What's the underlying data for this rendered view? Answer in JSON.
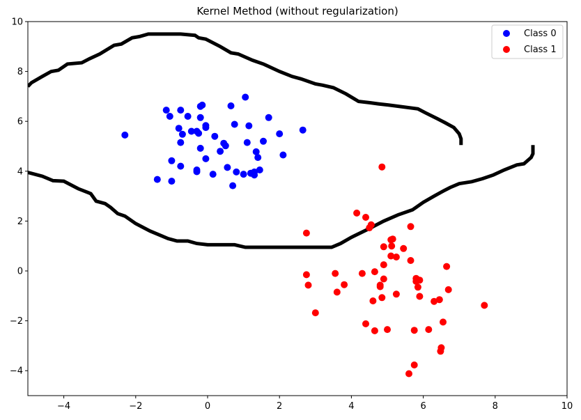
{
  "chart_data": {
    "type": "scatter",
    "title": "Kernel Method (without regularization)",
    "xlabel": "",
    "ylabel": "",
    "xlim": [
      -5,
      10
    ],
    "ylim": [
      -5,
      10
    ],
    "xticks": [
      -4,
      -2,
      0,
      2,
      4,
      6,
      8,
      10
    ],
    "yticks": [
      -4,
      -2,
      0,
      2,
      4,
      6,
      8,
      10
    ],
    "grid": false,
    "legend": "top-right",
    "series": [
      {
        "name": "Class 0",
        "color": "#0000ff",
        "points": [
          [
            -2.3,
            5.45
          ],
          [
            -1.15,
            6.45
          ],
          [
            -1.05,
            6.2
          ],
          [
            -0.75,
            6.45
          ],
          [
            -0.55,
            6.2
          ],
          [
            -0.2,
            6.6
          ],
          [
            -0.15,
            6.65
          ],
          [
            0.65,
            6.62
          ],
          [
            1.05,
            6.97
          ],
          [
            -0.8,
            5.72
          ],
          [
            -0.7,
            5.48
          ],
          [
            -0.45,
            5.6
          ],
          [
            -0.3,
            5.6
          ],
          [
            -0.25,
            5.52
          ],
          [
            -0.05,
            5.83
          ],
          [
            -0.05,
            5.75
          ],
          [
            0.75,
            5.88
          ],
          [
            1.15,
            5.82
          ],
          [
            1.7,
            6.15
          ],
          [
            2.0,
            5.5
          ],
          [
            2.65,
            5.65
          ],
          [
            -0.2,
            6.15
          ],
          [
            -0.75,
            5.15
          ],
          [
            -0.2,
            4.92
          ],
          [
            0.2,
            5.4
          ],
          [
            0.45,
            5.12
          ],
          [
            0.5,
            5.02
          ],
          [
            1.1,
            5.15
          ],
          [
            1.55,
            5.2
          ],
          [
            0.35,
            4.8
          ],
          [
            1.35,
            4.78
          ],
          [
            1.4,
            4.55
          ],
          [
            2.1,
            4.65
          ],
          [
            -0.05,
            4.5
          ],
          [
            -1.0,
            4.42
          ],
          [
            -0.75,
            4.2
          ],
          [
            -0.3,
            4.05
          ],
          [
            -0.3,
            3.98
          ],
          [
            0.55,
            4.15
          ],
          [
            0.8,
            3.97
          ],
          [
            1.0,
            3.88
          ],
          [
            1.2,
            3.92
          ],
          [
            1.3,
            3.97
          ],
          [
            1.45,
            4.05
          ],
          [
            0.15,
            3.88
          ],
          [
            1.3,
            3.85
          ],
          [
            -1.4,
            3.67
          ],
          [
            -1.0,
            3.6
          ],
          [
            0.7,
            3.42
          ]
        ]
      },
      {
        "name": "Class 1",
        "color": "#ff0000",
        "points": [
          [
            4.85,
            4.17
          ],
          [
            2.75,
            1.52
          ],
          [
            4.15,
            2.32
          ],
          [
            4.4,
            2.15
          ],
          [
            4.55,
            1.85
          ],
          [
            4.5,
            1.73
          ],
          [
            5.65,
            1.78
          ],
          [
            5.15,
            1.28
          ],
          [
            5.1,
            1.25
          ],
          [
            4.9,
            0.97
          ],
          [
            5.12,
            1.0
          ],
          [
            5.45,
            0.9
          ],
          [
            5.1,
            0.6
          ],
          [
            5.25,
            0.56
          ],
          [
            5.65,
            0.42
          ],
          [
            4.9,
            0.25
          ],
          [
            6.65,
            0.18
          ],
          [
            2.75,
            -0.15
          ],
          [
            3.55,
            -0.1
          ],
          [
            4.3,
            -0.1
          ],
          [
            4.65,
            -0.03
          ],
          [
            2.8,
            -0.57
          ],
          [
            3.8,
            -0.55
          ],
          [
            3.6,
            -0.85
          ],
          [
            4.8,
            -0.57
          ],
          [
            4.8,
            -0.63
          ],
          [
            4.9,
            -0.32
          ],
          [
            5.8,
            -0.3
          ],
          [
            5.9,
            -0.37
          ],
          [
            5.8,
            -0.42
          ],
          [
            5.85,
            -0.65
          ],
          [
            6.7,
            -0.75
          ],
          [
            5.25,
            -0.93
          ],
          [
            5.9,
            -1.02
          ],
          [
            4.85,
            -1.07
          ],
          [
            4.6,
            -1.2
          ],
          [
            6.3,
            -1.22
          ],
          [
            6.45,
            -1.15
          ],
          [
            7.7,
            -1.38
          ],
          [
            3.0,
            -1.68
          ],
          [
            4.4,
            -2.12
          ],
          [
            5.0,
            -2.35
          ],
          [
            4.65,
            -2.4
          ],
          [
            5.75,
            -2.38
          ],
          [
            6.15,
            -2.35
          ],
          [
            6.55,
            -2.05
          ],
          [
            6.5,
            -3.08
          ],
          [
            6.48,
            -3.22
          ],
          [
            5.75,
            -3.77
          ],
          [
            5.6,
            -4.12
          ]
        ]
      }
    ],
    "boundary": {
      "color": "#000000",
      "upper": [
        [
          -5.0,
          7.4
        ],
        [
          -4.9,
          7.55
        ],
        [
          -4.6,
          7.8
        ],
        [
          -4.35,
          8.0
        ],
        [
          -4.15,
          8.05
        ],
        [
          -3.9,
          8.3
        ],
        [
          -3.5,
          8.35
        ],
        [
          -3.3,
          8.5
        ],
        [
          -3.0,
          8.7
        ],
        [
          -2.6,
          9.05
        ],
        [
          -2.4,
          9.1
        ],
        [
          -2.1,
          9.35
        ],
        [
          -1.9,
          9.4
        ],
        [
          -1.65,
          9.5
        ],
        [
          -0.75,
          9.5
        ],
        [
          -0.35,
          9.45
        ],
        [
          -0.25,
          9.35
        ],
        [
          -0.05,
          9.3
        ],
        [
          0.35,
          9.0
        ],
        [
          0.65,
          8.75
        ],
        [
          0.85,
          8.7
        ],
        [
          1.25,
          8.45
        ],
        [
          1.55,
          8.3
        ],
        [
          2.0,
          8.0
        ],
        [
          2.35,
          7.8
        ],
        [
          2.6,
          7.7
        ],
        [
          3.0,
          7.5
        ],
        [
          3.2,
          7.45
        ],
        [
          3.5,
          7.35
        ],
        [
          3.85,
          7.1
        ],
        [
          4.2,
          6.8
        ],
        [
          4.5,
          6.75
        ],
        [
          4.75,
          6.7
        ],
        [
          5.05,
          6.65
        ],
        [
          5.85,
          6.5
        ],
        [
          6.05,
          6.35
        ],
        [
          6.4,
          6.1
        ],
        [
          6.6,
          5.95
        ],
        [
          6.85,
          5.75
        ],
        [
          7.0,
          5.5
        ],
        [
          7.05,
          5.3
        ],
        [
          7.05,
          5.05
        ]
      ],
      "lower": [
        [
          -5.0,
          3.95
        ],
        [
          -4.6,
          3.8
        ],
        [
          -4.3,
          3.62
        ],
        [
          -4.0,
          3.6
        ],
        [
          -3.6,
          3.3
        ],
        [
          -3.25,
          3.1
        ],
        [
          -3.1,
          2.8
        ],
        [
          -2.85,
          2.7
        ],
        [
          -2.7,
          2.55
        ],
        [
          -2.5,
          2.3
        ],
        [
          -2.3,
          2.2
        ],
        [
          -2.0,
          1.9
        ],
        [
          -1.6,
          1.6
        ],
        [
          -1.3,
          1.42
        ],
        [
          -1.1,
          1.3
        ],
        [
          -0.85,
          1.2
        ],
        [
          -0.55,
          1.2
        ],
        [
          -0.3,
          1.1
        ],
        [
          0.0,
          1.05
        ],
        [
          0.75,
          1.05
        ],
        [
          1.05,
          0.95
        ],
        [
          1.45,
          0.95
        ],
        [
          3.45,
          0.95
        ],
        [
          3.7,
          1.1
        ],
        [
          4.0,
          1.35
        ],
        [
          4.5,
          1.7
        ],
        [
          4.9,
          2.0
        ],
        [
          5.3,
          2.25
        ],
        [
          5.7,
          2.45
        ],
        [
          5.8,
          2.55
        ],
        [
          6.0,
          2.75
        ],
        [
          6.3,
          3.0
        ],
        [
          6.55,
          3.2
        ],
        [
          6.75,
          3.35
        ],
        [
          7.0,
          3.5
        ],
        [
          7.35,
          3.58
        ],
        [
          7.65,
          3.7
        ],
        [
          7.95,
          3.85
        ],
        [
          8.25,
          4.05
        ],
        [
          8.6,
          4.25
        ],
        [
          8.8,
          4.3
        ],
        [
          9.0,
          4.55
        ],
        [
          9.05,
          4.7
        ],
        [
          9.05,
          5.05
        ]
      ]
    }
  }
}
